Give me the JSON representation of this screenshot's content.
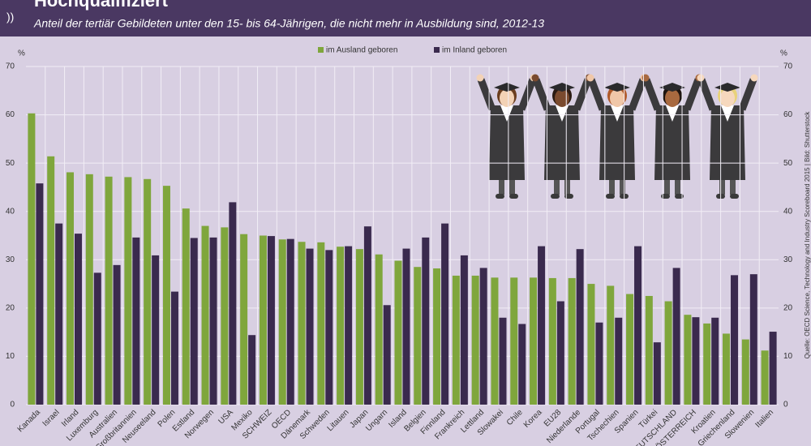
{
  "chart_data": {
    "type": "bar",
    "title": "Hochqualifiziert",
    "subtitle": "Anteil der tertiär Gebildeten unter den 15- bis 64-Jährigen, die nicht mehr in Ausbildung sind, 2012-13",
    "y_unit": "%",
    "source": "Quelle: OECD Science, Technology and Industry Scoreboard 2015 | Bild: Shutterstock",
    "categories": [
      "Kanada",
      "Israel",
      "Irland",
      "Luxemburg",
      "Australien",
      "Großbritannien",
      "Neuseeland",
      "Polen",
      "Estland",
      "Norwegen",
      "USA",
      "Mexiko",
      "SCHWEIZ",
      "OECD",
      "Dänemark",
      "Schweden",
      "Litauen",
      "Japan",
      "Ungarn",
      "Island",
      "Belgien",
      "Finnland",
      "Frankreich",
      "Lettland",
      "Slowakei",
      "Chile",
      "Korea",
      "EU28",
      "Niederlande",
      "Portugal",
      "Tschechien",
      "Spanien",
      "Türkei",
      "DEUTSCHLAND",
      "ÖSTERREICH",
      "Kroatien",
      "Griechenland",
      "Slowenien",
      "Italien"
    ],
    "series": [
      {
        "name": "im Ausland geboren",
        "color": "#7fa63c",
        "values": [
          60.3,
          51.4,
          48.1,
          47.7,
          47.2,
          47.1,
          46.7,
          45.3,
          40.6,
          37.0,
          36.7,
          35.3,
          35.0,
          34.2,
          33.7,
          33.6,
          32.7,
          32.2,
          31.1,
          29.8,
          28.5,
          28.2,
          26.7,
          26.7,
          26.3,
          26.3,
          26.3,
          26.2,
          26.2,
          25.0,
          24.6,
          22.9,
          22.5,
          21.4,
          18.6,
          16.8,
          14.7,
          13.5,
          11.2
        ]
      },
      {
        "name": "im Inland geboren",
        "color": "#3a2a4e",
        "values": [
          45.8,
          37.5,
          35.4,
          27.3,
          28.9,
          34.6,
          30.9,
          23.4,
          34.5,
          34.6,
          41.9,
          14.4,
          34.9,
          34.3,
          32.3,
          32.0,
          32.8,
          36.9,
          20.6,
          32.3,
          34.6,
          37.5,
          30.9,
          28.3,
          18.0,
          16.7,
          32.8,
          21.4,
          32.2,
          17.0,
          18.0,
          32.8,
          12.9,
          28.3,
          18.1,
          18.0,
          26.8,
          27.0,
          15.1
        ]
      }
    ],
    "ylim": [
      0,
      70
    ],
    "yticks": [
      0,
      10,
      20,
      30,
      40,
      50,
      60,
      70
    ],
    "grid": true
  }
}
